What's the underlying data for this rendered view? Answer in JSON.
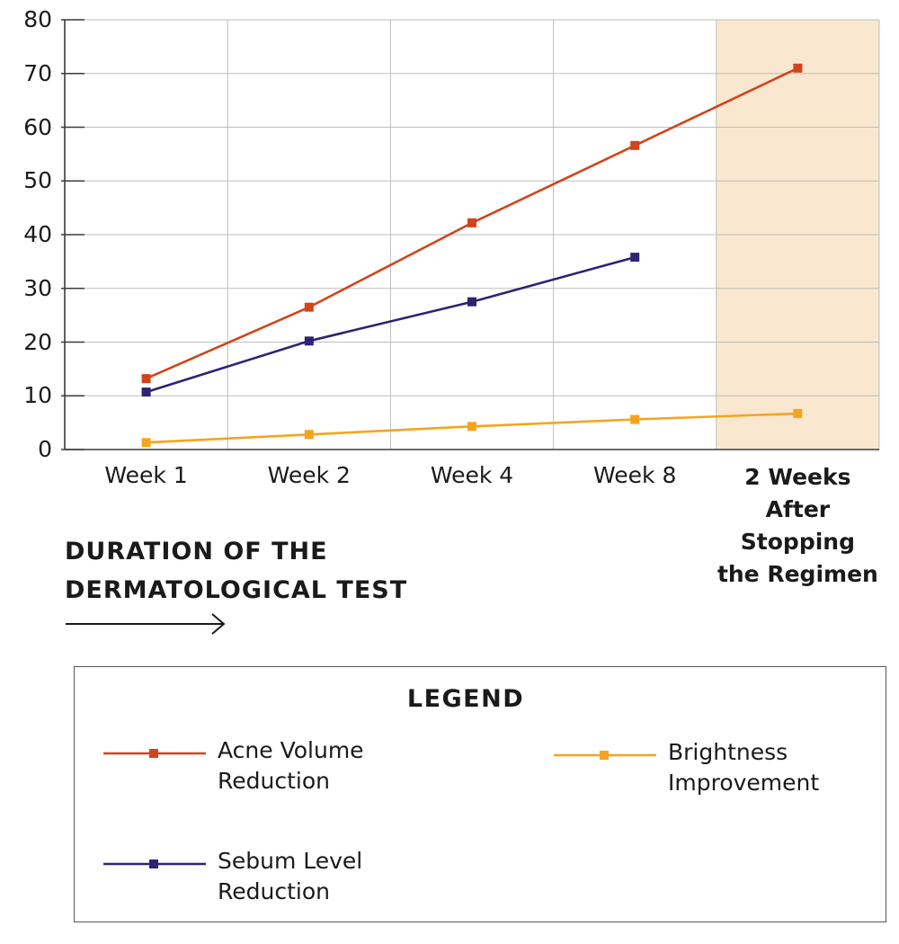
{
  "chart_data": {
    "type": "line",
    "categories": [
      "Week 1",
      "Week 2",
      "Week 4",
      "Week 8",
      "2 Weeks After Stopping the Regimen"
    ],
    "highlight_category": "2 Weeks After Stopping the Regimen",
    "highlight_color": "#f9e7cf",
    "ylim": [
      0,
      80
    ],
    "yticks": [
      "0",
      "10",
      "20",
      "30",
      "40",
      "50",
      "60",
      "70",
      "80"
    ],
    "grid": true,
    "xlabel": "DURATION OF THE DERMATOLOGICAL TEST",
    "ylabel": "",
    "series": [
      {
        "name": "Acne Volume Reduction",
        "color": "#d0451b",
        "values": [
          13.2,
          26.5,
          42.2,
          56.6,
          71
        ]
      },
      {
        "name": "Sebum Level Reduction",
        "color": "#2e2372",
        "values": [
          10.7,
          20.2,
          27.5,
          35.8,
          null
        ]
      },
      {
        "name": "Brightness Improvement",
        "color": "#f5a41e",
        "values": [
          1.3,
          2.8,
          4.3,
          5.6,
          6.7
        ]
      }
    ]
  },
  "legend": {
    "title": "LEGEND",
    "items": [
      {
        "line1": "Acne Volume",
        "line2": "Reduction"
      },
      {
        "line1": "Brightness",
        "line2": "Improvement"
      },
      {
        "line1": "Sebum Level",
        "line2": "Reduction"
      }
    ]
  },
  "x_axis": {
    "title_line1": "DURATION OF THE",
    "title_line2": "DERMATOLOGICAL TEST",
    "highlight_lines": [
      "2 Weeks",
      "After",
      "Stopping",
      "the Regimen"
    ]
  }
}
